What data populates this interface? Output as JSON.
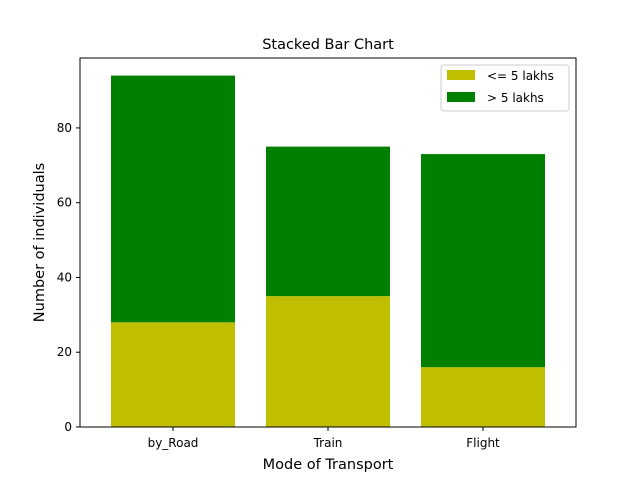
{
  "chart_data": {
    "type": "bar",
    "stacked": true,
    "title": "Stacked Bar Chart",
    "xlabel": "Mode of Transport",
    "ylabel": "Number of individuals",
    "categories": [
      "by_Road",
      "Train",
      "Flight"
    ],
    "series": [
      {
        "name": "<= 5 lakhs",
        "color": "#bfbf00",
        "values": [
          28,
          35,
          16
        ]
      },
      {
        "name": "> 5 lakhs",
        "color": "#008000",
        "values": [
          66,
          40,
          57
        ]
      }
    ],
    "ylim": [
      0,
      98.7
    ],
    "yticks": [
      0,
      20,
      40,
      60,
      80
    ],
    "grid": false,
    "legend_position": "top-right"
  }
}
